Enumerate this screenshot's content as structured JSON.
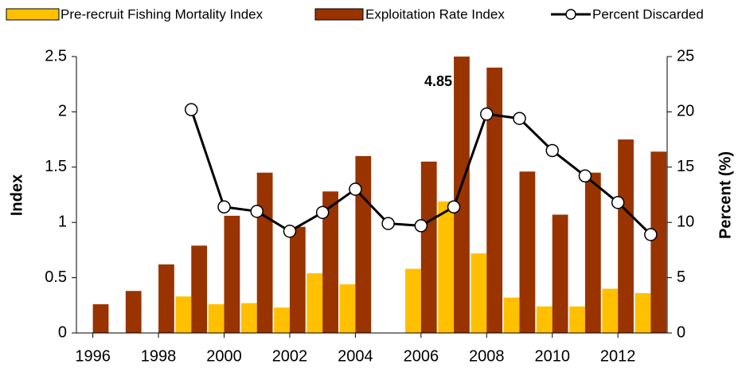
{
  "chart_data": {
    "type": "bar",
    "x": [
      1996,
      1997,
      1998,
      1999,
      2000,
      2001,
      2002,
      2003,
      2004,
      2005,
      2006,
      2007,
      2008,
      2009,
      2010,
      2011,
      2012,
      2013
    ],
    "xlim": [
      1995.5,
      2013.5
    ],
    "xticks": [
      1996,
      1998,
      2000,
      2002,
      2004,
      2006,
      2008,
      2010,
      2012
    ],
    "ylabel": "Index",
    "y2label": "Percent (%)",
    "ylim": [
      0,
      2.5
    ],
    "yticks": [
      0,
      0.5,
      1,
      1.5,
      2,
      2.5
    ],
    "y2lim": [
      0,
      25
    ],
    "y2ticks": [
      0,
      5,
      10,
      15,
      20,
      25
    ],
    "grid": false,
    "legend": "top",
    "series": [
      {
        "name": "Pre-recruit Fishing Mortality Index",
        "type": "bar",
        "color": "#ffc000",
        "values": [
          null,
          null,
          null,
          0.33,
          0.26,
          0.27,
          0.23,
          0.54,
          0.44,
          null,
          0.58,
          1.19,
          0.72,
          0.32,
          0.24,
          0.24,
          0.4,
          0.36
        ]
      },
      {
        "name": "Exploitation Rate Index",
        "type": "bar",
        "color": "#993300",
        "values": [
          0.26,
          0.38,
          0.62,
          0.79,
          1.06,
          1.45,
          0.96,
          1.28,
          1.6,
          null,
          1.55,
          4.85,
          2.4,
          1.46,
          1.07,
          1.45,
          1.75,
          1.64
        ]
      },
      {
        "name": "Percent Discarded",
        "type": "line",
        "axis": "y2",
        "color": "#000000",
        "values": [
          null,
          null,
          null,
          20.2,
          11.4,
          11.0,
          9.2,
          10.9,
          13.0,
          9.9,
          9.7,
          11.4,
          19.8,
          19.4,
          16.5,
          14.2,
          11.8,
          8.9
        ]
      }
    ]
  }
}
